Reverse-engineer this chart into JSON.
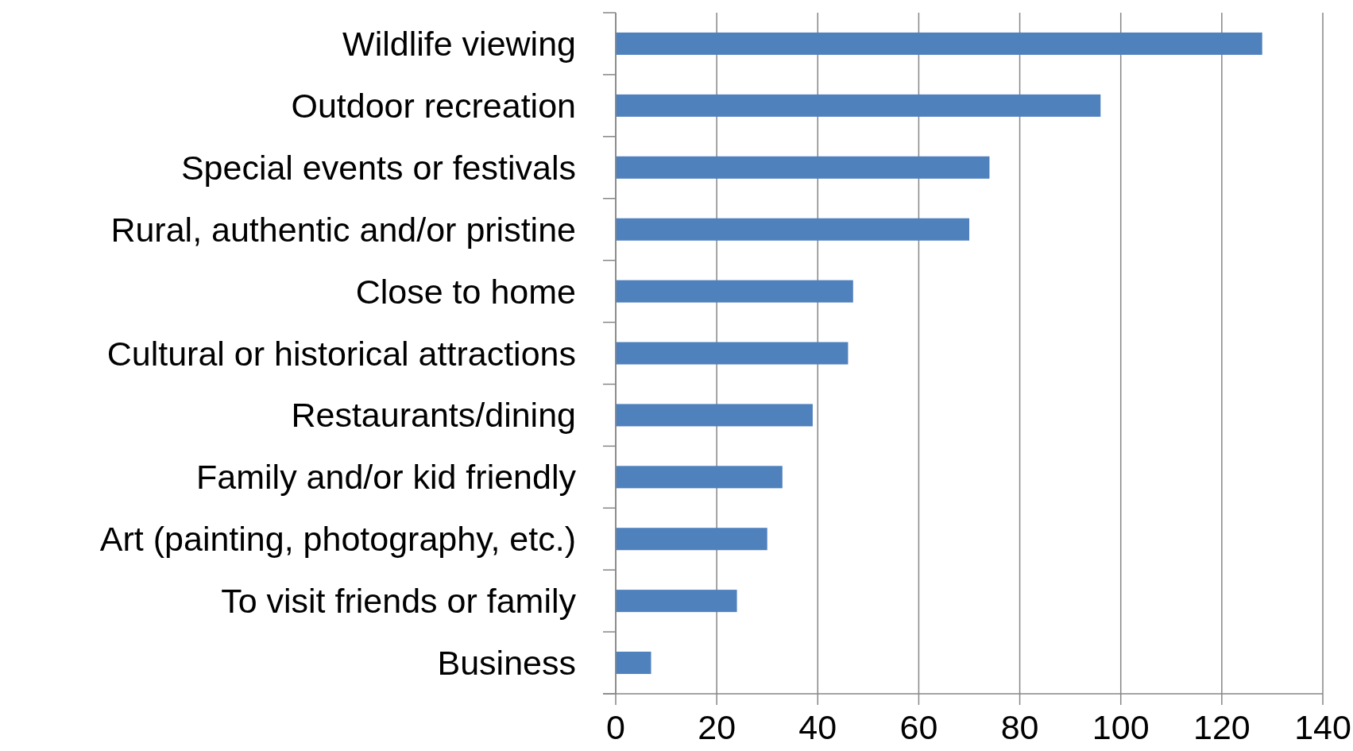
{
  "chart_data": {
    "type": "bar",
    "orientation": "horizontal",
    "categories": [
      "Wildlife viewing",
      "Outdoor recreation",
      "Special events or festivals",
      "Rural, authentic and/or pristine",
      "Close to home",
      "Cultural or historical attractions",
      "Restaurants/dining",
      "Family and/or kid friendly",
      "Art (painting, photography, etc.)",
      "To visit friends or family",
      "Business"
    ],
    "values": [
      128,
      96,
      74,
      70,
      47,
      46,
      39,
      33,
      30,
      24,
      7
    ],
    "color": "#4f81bd",
    "xlim": [
      0,
      140
    ],
    "xticks": [
      0,
      20,
      40,
      60,
      80,
      100,
      120,
      140
    ],
    "grid": "x"
  }
}
